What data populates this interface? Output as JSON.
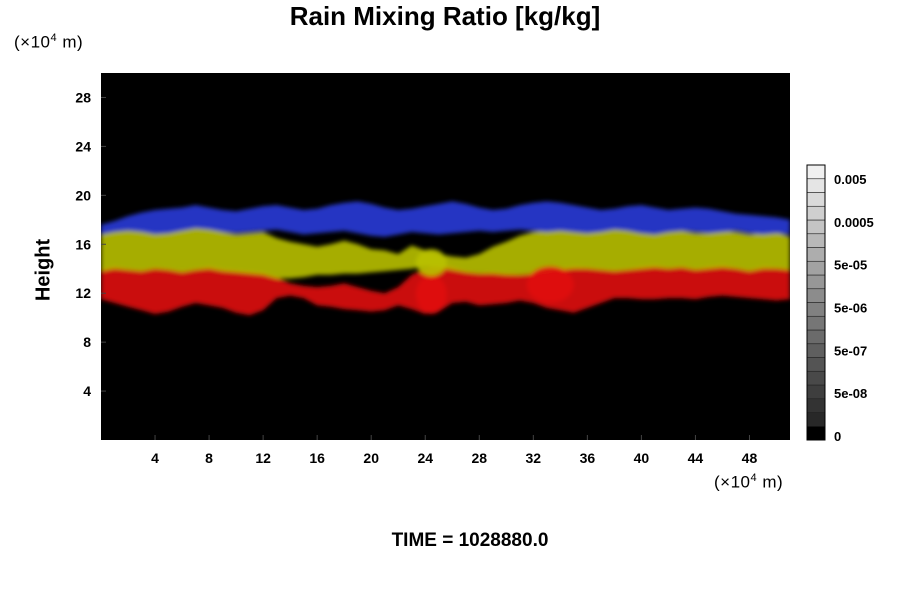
{
  "title": "Rain Mixing Ratio [kg/kg]",
  "chart_data": {
    "type": "heatmap",
    "title": "Rain Mixing Ratio [kg/kg]",
    "ylabel": "Height",
    "xlabel": "",
    "y_scale_label": {
      "pre": "(×10",
      "exp": "4",
      "post": " m)"
    },
    "x_scale_label": {
      "pre": "(×10",
      "exp": "4",
      "post": " m)"
    },
    "xlim": [
      0,
      51
    ],
    "ylim": [
      0,
      30
    ],
    "x_ticks": [
      "4",
      "8",
      "12",
      "16",
      "20",
      "24",
      "28",
      "32",
      "36",
      "40",
      "44",
      "48"
    ],
    "y_ticks": [
      "4",
      "8",
      "12",
      "16",
      "20",
      "24",
      "28"
    ],
    "background": "#000000",
    "colorbar": {
      "labels": [
        "0.005",
        "0.0005",
        "5e-05",
        "5e-06",
        "5e-07",
        "5e-08",
        "0"
      ],
      "levels": 20,
      "colors": {
        "low": "#000000",
        "high": "#f0f0f0"
      }
    },
    "bands": [
      {
        "name": "red",
        "color": "#e01010",
        "bottom": [
          11.5,
          11.2,
          10.9,
          10.6,
          10.3,
          10.5,
          10.9,
          11.2,
          11.0,
          10.8,
          10.4,
          10.2,
          10.6,
          11.6,
          11.8,
          11.6,
          11.0,
          10.9,
          10.7,
          10.6,
          10.5,
          10.6,
          11.0,
          10.7,
          10.3,
          10.5,
          11.2,
          11.3,
          11.0,
          11.1,
          11.2,
          11.4,
          11.2,
          10.8,
          10.6,
          10.4,
          10.8,
          11.2,
          11.6,
          11.6,
          11.5,
          11.5,
          11.6,
          11.6,
          11.5,
          11.7,
          11.8,
          11.7,
          11.6,
          11.5,
          11.4,
          11.5
        ],
        "top": [
          14.0,
          14.2,
          14.0,
          13.9,
          14.1,
          14.0,
          13.8,
          14.0,
          14.2,
          14.0,
          13.9,
          13.8,
          13.7,
          13.3,
          12.8,
          12.6,
          12.5,
          12.6,
          12.8,
          12.5,
          12.2,
          12.0,
          12.5,
          13.5,
          14.0,
          14.3,
          14.2,
          13.8,
          13.6,
          13.7,
          13.6,
          13.5,
          13.6,
          13.8,
          14.0,
          14.2,
          14.1,
          14.0,
          13.9,
          14.0,
          14.2,
          14.3,
          14.1,
          14.2,
          14.0,
          14.2,
          14.3,
          14.1,
          13.9,
          14.2,
          14.1,
          14.0
        ]
      },
      {
        "name": "yellow-green",
        "color": "#b8c000",
        "bottom": [
          13.8,
          14.0,
          13.9,
          13.8,
          14.0,
          13.9,
          13.7,
          13.9,
          14.0,
          13.8,
          13.7,
          13.6,
          13.5,
          13.2,
          13.2,
          13.3,
          13.5,
          13.5,
          13.6,
          13.6,
          13.7,
          13.8,
          13.9,
          14.0,
          14.2,
          14.1,
          13.9,
          13.7,
          13.6,
          13.6,
          13.5,
          13.5,
          13.6,
          13.7,
          13.9,
          14.0,
          14.0,
          13.9,
          13.8,
          13.9,
          14.0,
          14.1,
          14.0,
          14.1,
          13.9,
          14.0,
          14.1,
          14.0,
          13.8,
          14.0,
          14.0,
          13.9
        ],
        "top": [
          16.8,
          17.1,
          17.3,
          17.2,
          17.0,
          16.9,
          17.2,
          17.4,
          17.3,
          17.0,
          16.8,
          16.9,
          17.0,
          16.5,
          16.2,
          16.0,
          15.8,
          16.0,
          16.3,
          16.0,
          15.6,
          15.5,
          15.2,
          15.9,
          15.5,
          15.2,
          15.0,
          14.9,
          15.2,
          15.8,
          16.2,
          16.7,
          17.0,
          17.1,
          17.2,
          17.0,
          16.9,
          17.1,
          17.3,
          17.1,
          16.9,
          16.8,
          17.0,
          17.1,
          16.9,
          16.9,
          17.1,
          17.0,
          16.8,
          16.9,
          17.0,
          16.6
        ]
      },
      {
        "name": "blue",
        "color": "#2a3ad8",
        "bottom": [
          16.8,
          17.0,
          17.1,
          17.0,
          16.8,
          16.9,
          17.1,
          17.3,
          17.2,
          17.0,
          16.9,
          17.0,
          17.1,
          17.2,
          17.0,
          16.8,
          16.9,
          17.0,
          17.1,
          16.9,
          16.7,
          16.6,
          16.8,
          17.0,
          16.9,
          16.8,
          16.9,
          17.0,
          17.1,
          17.0,
          17.1,
          17.2,
          17.1,
          17.0,
          17.1,
          17.0,
          16.9,
          17.0,
          17.2,
          17.1,
          16.9,
          16.8,
          17.0,
          17.1,
          17.0,
          16.9,
          17.0,
          17.1,
          16.9,
          16.8,
          16.9,
          16.8
        ],
        "top": [
          17.6,
          17.9,
          18.3,
          18.6,
          18.8,
          18.9,
          19.0,
          19.2,
          19.0,
          18.8,
          18.7,
          18.9,
          19.1,
          19.2,
          19.0,
          18.8,
          18.9,
          19.2,
          19.4,
          19.5,
          19.3,
          19.0,
          18.8,
          18.9,
          19.1,
          19.3,
          19.5,
          19.3,
          19.0,
          18.8,
          18.9,
          19.2,
          19.4,
          19.5,
          19.4,
          19.2,
          19.0,
          18.8,
          18.9,
          19.1,
          19.2,
          19.0,
          18.8,
          18.9,
          19.0,
          18.9,
          18.7,
          18.5,
          18.4,
          18.3,
          18.2,
          18.0
        ]
      },
      {
        "name": "red-bump",
        "color": "#e01010",
        "bottom": [
          10.3
        ],
        "top": [
          13.5
        ],
        "x0": 23.3,
        "x1": 25.6
      },
      {
        "name": "yellow-bump",
        "color": "#b8c000",
        "bottom": [
          13.4
        ],
        "top": [
          15.6
        ],
        "x0": 23.3,
        "x1": 25.6
      },
      {
        "name": "red-swirl",
        "color": "#e01010",
        "bottom": [
          11.2
        ],
        "top": [
          14.2
        ],
        "x0": 31.5,
        "x1": 35.0
      }
    ]
  },
  "time_label": "TIME = 1028880.0"
}
